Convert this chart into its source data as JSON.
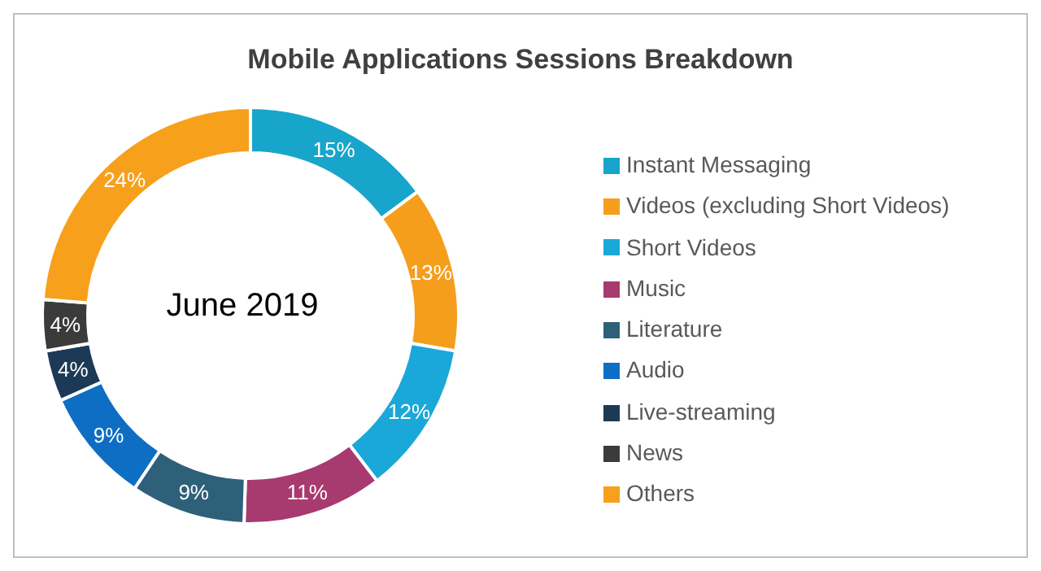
{
  "chart_data": {
    "type": "donut",
    "title": "Mobile Applications Sessions Breakdown",
    "categories": [
      "Instant Messaging",
      "Videos (excluding Short Videos)",
      "Short Videos",
      "Music",
      "Literature",
      "Audio",
      "Live-streaming",
      "News",
      "Others"
    ],
    "values": [
      15,
      13,
      12,
      11,
      9,
      9,
      4,
      4,
      24
    ],
    "value_labels": [
      "15%",
      "13%",
      "12%",
      "11%",
      "9%",
      "9%",
      "4%",
      "4%",
      "24%"
    ],
    "colors": [
      "#17a5cb",
      "#f59e1c",
      "#1aa8d8",
      "#a73a6e",
      "#2f6079",
      "#0e6ec4",
      "#1c3a56",
      "#3b3b3b",
      "#f7a01c"
    ],
    "annotations": [
      "June 2019"
    ],
    "legend": "right"
  }
}
